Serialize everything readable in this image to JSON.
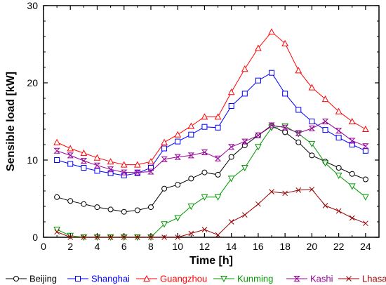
{
  "chart_data": {
    "type": "line",
    "title": "",
    "xlabel": "Time  [h]",
    "ylabel": "Sensible load [kW]",
    "xlim": [
      0,
      25
    ],
    "ylim": [
      0,
      30
    ],
    "x_ticks": [
      0,
      2,
      4,
      6,
      8,
      10,
      12,
      14,
      16,
      18,
      20,
      22,
      24
    ],
    "y_ticks": [
      0,
      10,
      20,
      30
    ],
    "grid": false,
    "legend_position": "bottom",
    "x": [
      1,
      2,
      3,
      4,
      5,
      6,
      7,
      8,
      9,
      10,
      11,
      12,
      13,
      14,
      15,
      16,
      17,
      18,
      19,
      20,
      21,
      22,
      23,
      24
    ],
    "series": [
      {
        "name": "Beijing",
        "color": "#000000",
        "marker": "circle",
        "values": [
          5.2,
          4.7,
          4.3,
          3.9,
          3.6,
          3.3,
          3.5,
          3.9,
          6.3,
          6.8,
          7.6,
          8.4,
          8.1,
          10.4,
          11.9,
          13.2,
          14.4,
          13.6,
          12.3,
          10.6,
          9.8,
          9.0,
          8.2,
          7.5
        ]
      },
      {
        "name": "Shanghai",
        "color": "#0000ff",
        "marker": "square",
        "values": [
          10.0,
          9.5,
          9.0,
          8.6,
          8.3,
          8.0,
          8.3,
          9.0,
          11.5,
          12.4,
          13.3,
          14.3,
          14.2,
          17.0,
          18.6,
          20.3,
          21.3,
          18.6,
          16.5,
          15.0,
          13.9,
          12.9,
          12.0,
          11.2
        ]
      },
      {
        "name": "Guangzhou",
        "color": "#ff0000",
        "marker": "triangle-up",
        "values": [
          12.3,
          11.5,
          10.9,
          10.3,
          9.8,
          9.4,
          9.4,
          9.8,
          12.3,
          13.3,
          14.4,
          15.6,
          15.6,
          18.8,
          21.8,
          24.5,
          26.6,
          25.1,
          21.6,
          19.4,
          17.9,
          16.3,
          15.0,
          14.0
        ]
      },
      {
        "name": "Kunming",
        "color": "#009900",
        "marker": "triangle-down",
        "values": [
          1.0,
          0.2,
          0,
          0,
          0,
          0,
          0,
          0,
          1.7,
          2.5,
          4.0,
          5.2,
          5.2,
          7.6,
          9.0,
          11.7,
          14.2,
          14.4,
          13.4,
          12.1,
          9.6,
          8.0,
          6.6,
          5.2
        ]
      },
      {
        "name": "Kashi",
        "color": "#990099",
        "marker": "bowtie",
        "values": [
          11.2,
          10.6,
          9.9,
          9.3,
          8.8,
          8.4,
          8.4,
          8.5,
          10.1,
          10.4,
          10.6,
          11.0,
          10.2,
          11.7,
          12.4,
          13.2,
          14.5,
          14.2,
          13.5,
          14.1,
          15.0,
          13.8,
          12.5,
          11.8
        ]
      },
      {
        "name": "Lhasa",
        "color": "#990000",
        "marker": "x",
        "values": [
          0.7,
          0,
          0,
          0,
          0,
          0,
          0,
          0,
          0,
          0,
          0.5,
          1.0,
          0.3,
          2.0,
          2.9,
          4.3,
          5.9,
          5.7,
          6.1,
          6.2,
          4.1,
          3.4,
          2.5,
          1.8
        ]
      }
    ]
  }
}
